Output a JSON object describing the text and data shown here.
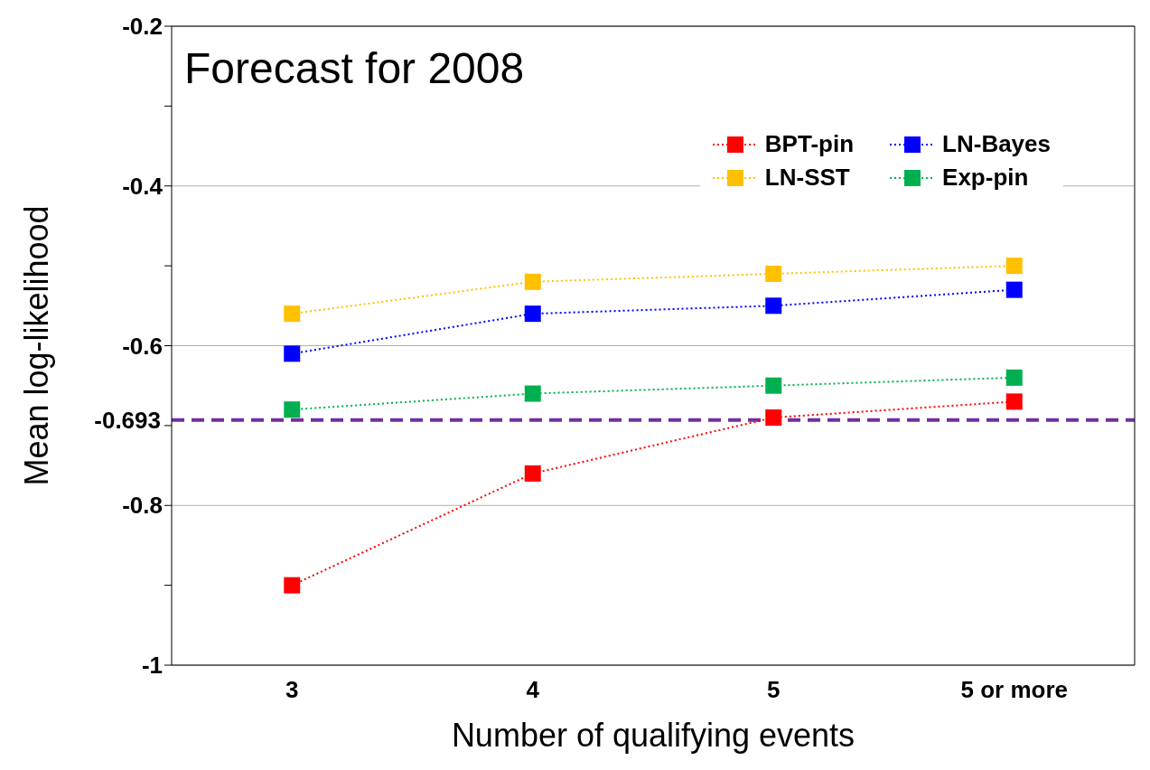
{
  "chart_data": {
    "type": "line",
    "title": "Forecast for 2008",
    "xlabel": "Number of qualifying events",
    "ylabel": "Mean log-likelihood",
    "categories": [
      "3",
      "4",
      "5",
      "5 or more"
    ],
    "series": [
      {
        "name": "BPT-pin",
        "color": "#ff0000",
        "values": [
          -0.9,
          -0.76,
          -0.69,
          -0.67
        ]
      },
      {
        "name": "LN-Bayes",
        "color": "#0000ff",
        "values": [
          -0.61,
          -0.56,
          -0.55,
          -0.53
        ]
      },
      {
        "name": "LN-SST",
        "color": "#ffc000",
        "values": [
          -0.56,
          -0.52,
          -0.51,
          -0.5
        ]
      },
      {
        "name": "Exp-pin",
        "color": "#00b050",
        "values": [
          -0.68,
          -0.66,
          -0.65,
          -0.64
        ]
      }
    ],
    "ylim": [
      -1,
      -0.2
    ],
    "yticks": [
      -1,
      {
        "value": -0.9,
        "label": null
      },
      -0.8,
      {
        "value": -0.7,
        "label": null
      },
      -0.6,
      {
        "value": -0.5,
        "label": null
      },
      -0.4,
      {
        "value": -0.3,
        "label": null
      },
      -0.2
    ],
    "ref_lines": [
      {
        "axis": "y",
        "value": -0.693,
        "label": "-0.693",
        "color": "#7030a0",
        "line_style": "dashed"
      }
    ],
    "grid": "y",
    "legend": "top right",
    "marker": "square",
    "line_style": "dotted"
  }
}
